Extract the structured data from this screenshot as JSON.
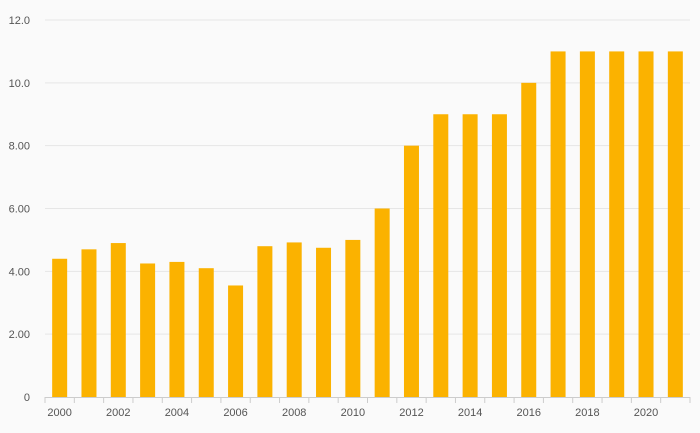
{
  "chart_data": {
    "type": "bar",
    "title": "",
    "xlabel": "",
    "ylabel": "",
    "categories": [
      "2000",
      "2001",
      "2002",
      "2003",
      "2004",
      "2005",
      "2006",
      "2007",
      "2008",
      "2009",
      "2010",
      "2011",
      "2012",
      "2013",
      "2014",
      "2015",
      "2016",
      "2017",
      "2018",
      "2019",
      "2020",
      "2021"
    ],
    "values": [
      4.4,
      4.7,
      4.9,
      4.25,
      4.3,
      4.1,
      3.55,
      4.8,
      4.92,
      4.75,
      5.0,
      6.0,
      8.0,
      9.0,
      9.0,
      9.0,
      10.0,
      11.0,
      11.0,
      11.0,
      11.0,
      11.0
    ],
    "x_tick_labels": [
      "2000",
      "2002",
      "2004",
      "2006",
      "2008",
      "2010",
      "2012",
      "2014",
      "2016",
      "2018",
      "2020"
    ],
    "y_tick_labels": [
      "0",
      "2.00",
      "4.00",
      "6.00",
      "8.00",
      "10.0",
      "12.0"
    ],
    "ylim": [
      0,
      12
    ],
    "grid": true,
    "bar_color": "#fbb200",
    "grid_color": "#e6e6e6",
    "axis_color": "#cccccc"
  }
}
